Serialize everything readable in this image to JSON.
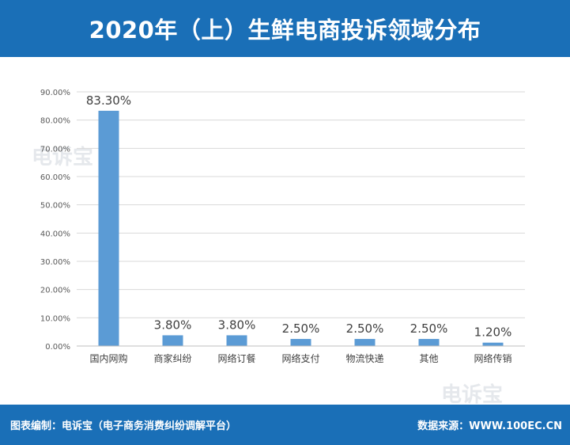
{
  "header": {
    "title": "2020年（上）生鲜电商投诉领域分布"
  },
  "footer": {
    "credit": "图表编制：电诉宝（电子商务消费纠纷调解平台）",
    "source": "数据来源：WWW.100EC.CN"
  },
  "watermark": {
    "text": "电诉宝"
  },
  "colors": {
    "header_bg": "#1a6fb7",
    "bar": "#5b9bd5",
    "grid": "#d9d9d9"
  },
  "chart_data": {
    "type": "bar",
    "categories": [
      "国内网购",
      "商家纠纷",
      "网络订餐",
      "网络支付",
      "物流快递",
      "其他",
      "网络传销"
    ],
    "values": [
      83.3,
      3.8,
      3.8,
      2.5,
      2.5,
      2.5,
      1.2
    ],
    "data_labels": [
      "83.30%",
      "3.80%",
      "3.80%",
      "2.50%",
      "2.50%",
      "2.50%",
      "1.20%"
    ],
    "yticks": [
      "0.00%",
      "10.00%",
      "20.00%",
      "30.00%",
      "40.00%",
      "50.00%",
      "60.00%",
      "70.00%",
      "80.00%",
      "90.00%"
    ],
    "ylim": [
      0,
      90
    ],
    "grid": true,
    "legend": "none",
    "title": "",
    "xlabel": "",
    "ylabel": ""
  }
}
